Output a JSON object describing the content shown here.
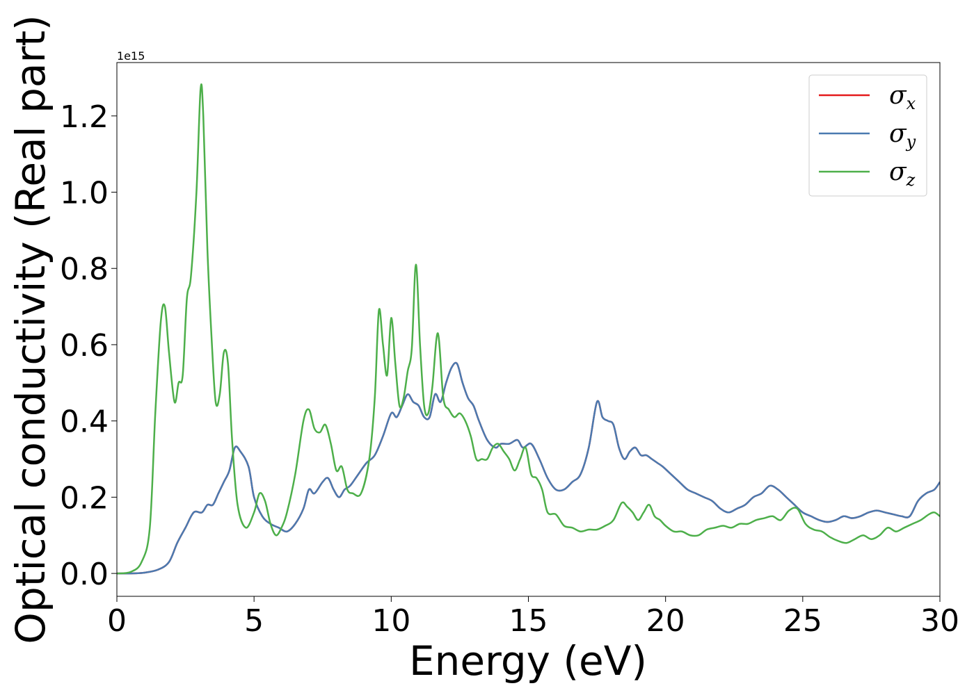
{
  "chart_data": {
    "type": "line",
    "xlabel": "Energy (eV)",
    "ylabel": "Optical conductivity (Real part)",
    "y_offset_label": "1e15",
    "xlim": [
      0,
      30
    ],
    "ylim": [
      -0.06,
      1.34
    ],
    "x_ticks": [
      0,
      5,
      10,
      15,
      20,
      25,
      30
    ],
    "x_tick_labels": [
      "0",
      "5",
      "10",
      "15",
      "20",
      "25",
      "30"
    ],
    "y_ticks": [
      0.0,
      0.2,
      0.4,
      0.6,
      0.8,
      1.0,
      1.2
    ],
    "y_tick_labels": [
      "0.0",
      "0.2",
      "0.4",
      "0.6",
      "0.8",
      "1.0",
      "1.2"
    ],
    "grid": false,
    "legend_position": "top-right",
    "series": [
      {
        "name": "σx",
        "symbol": "σ",
        "subscript": "x",
        "color": "#e41a1c",
        "x": [
          0,
          0.5,
          1,
          1.5,
          1.9,
          2.2,
          2.5,
          2.8,
          3.1,
          3.3,
          3.5,
          3.7,
          3.9,
          4.1,
          4.3,
          4.5,
          4.8,
          5,
          5.3,
          5.6,
          5.9,
          6.2,
          6.5,
          6.8,
          7,
          7.2,
          7.5,
          7.7,
          7.9,
          8.1,
          8.3,
          8.5,
          8.8,
          9.1,
          9.4,
          9.7,
          10,
          10.2,
          10.4,
          10.6,
          10.8,
          11,
          11.2,
          11.4,
          11.6,
          11.8,
          12,
          12.2,
          12.4,
          12.6,
          12.8,
          13,
          13.2,
          13.5,
          13.8,
          14,
          14.3,
          14.6,
          14.8,
          15.1,
          15.4,
          15.7,
          16,
          16.3,
          16.6,
          16.9,
          17.2,
          17.5,
          17.7,
          17.9,
          18.1,
          18.3,
          18.5,
          18.7,
          18.9,
          19.1,
          19.3,
          19.5,
          19.7,
          19.9,
          20.2,
          20.5,
          20.8,
          21.1,
          21.4,
          21.7,
          22,
          22.3,
          22.6,
          22.9,
          23.2,
          23.5,
          23.8,
          24.1,
          24.4,
          24.7,
          25,
          25.3,
          25.6,
          25.9,
          26.2,
          26.5,
          26.8,
          27.1,
          27.4,
          27.7,
          28,
          28.3,
          28.6,
          28.9,
          29.2,
          29.5,
          29.8,
          30
        ],
        "y": [
          0,
          0,
          0.002,
          0.01,
          0.03,
          0.08,
          0.12,
          0.16,
          0.16,
          0.18,
          0.18,
          0.21,
          0.24,
          0.27,
          0.33,
          0.32,
          0.28,
          0.2,
          0.15,
          0.13,
          0.12,
          0.11,
          0.13,
          0.17,
          0.22,
          0.21,
          0.24,
          0.25,
          0.22,
          0.2,
          0.22,
          0.23,
          0.26,
          0.29,
          0.31,
          0.36,
          0.42,
          0.41,
          0.44,
          0.47,
          0.45,
          0.44,
          0.41,
          0.41,
          0.47,
          0.45,
          0.5,
          0.54,
          0.55,
          0.5,
          0.46,
          0.44,
          0.4,
          0.35,
          0.33,
          0.34,
          0.34,
          0.35,
          0.33,
          0.34,
          0.3,
          0.25,
          0.22,
          0.22,
          0.24,
          0.26,
          0.33,
          0.45,
          0.41,
          0.4,
          0.39,
          0.33,
          0.3,
          0.32,
          0.33,
          0.31,
          0.31,
          0.3,
          0.29,
          0.28,
          0.26,
          0.24,
          0.22,
          0.21,
          0.2,
          0.19,
          0.17,
          0.16,
          0.17,
          0.18,
          0.2,
          0.21,
          0.23,
          0.22,
          0.2,
          0.18,
          0.16,
          0.15,
          0.14,
          0.135,
          0.14,
          0.15,
          0.145,
          0.15,
          0.16,
          0.165,
          0.16,
          0.155,
          0.15,
          0.15,
          0.19,
          0.21,
          0.22,
          0.24
        ]
      },
      {
        "name": "σy",
        "symbol": "σ",
        "subscript": "y",
        "color": "#4a7ab0",
        "x": [
          0,
          0.5,
          1,
          1.5,
          1.9,
          2.2,
          2.5,
          2.8,
          3.1,
          3.3,
          3.5,
          3.7,
          3.9,
          4.1,
          4.3,
          4.5,
          4.8,
          5,
          5.3,
          5.6,
          5.9,
          6.2,
          6.5,
          6.8,
          7,
          7.2,
          7.5,
          7.7,
          7.9,
          8.1,
          8.3,
          8.5,
          8.8,
          9.1,
          9.4,
          9.7,
          10,
          10.2,
          10.4,
          10.6,
          10.8,
          11,
          11.2,
          11.4,
          11.6,
          11.8,
          12,
          12.2,
          12.4,
          12.6,
          12.8,
          13,
          13.2,
          13.5,
          13.8,
          14,
          14.3,
          14.6,
          14.8,
          15.1,
          15.4,
          15.7,
          16,
          16.3,
          16.6,
          16.9,
          17.2,
          17.5,
          17.7,
          17.9,
          18.1,
          18.3,
          18.5,
          18.7,
          18.9,
          19.1,
          19.3,
          19.5,
          19.7,
          19.9,
          20.2,
          20.5,
          20.8,
          21.1,
          21.4,
          21.7,
          22,
          22.3,
          22.6,
          22.9,
          23.2,
          23.5,
          23.8,
          24.1,
          24.4,
          24.7,
          25,
          25.3,
          25.6,
          25.9,
          26.2,
          26.5,
          26.8,
          27.1,
          27.4,
          27.7,
          28,
          28.3,
          28.6,
          28.9,
          29.2,
          29.5,
          29.8,
          30
        ],
        "y": [
          0,
          0,
          0.002,
          0.01,
          0.03,
          0.08,
          0.12,
          0.16,
          0.16,
          0.18,
          0.18,
          0.21,
          0.24,
          0.27,
          0.33,
          0.32,
          0.28,
          0.2,
          0.15,
          0.13,
          0.12,
          0.11,
          0.13,
          0.17,
          0.22,
          0.21,
          0.24,
          0.25,
          0.22,
          0.2,
          0.22,
          0.23,
          0.26,
          0.29,
          0.31,
          0.36,
          0.42,
          0.41,
          0.44,
          0.47,
          0.45,
          0.44,
          0.41,
          0.41,
          0.47,
          0.45,
          0.5,
          0.54,
          0.55,
          0.5,
          0.46,
          0.44,
          0.4,
          0.35,
          0.33,
          0.34,
          0.34,
          0.35,
          0.33,
          0.34,
          0.3,
          0.25,
          0.22,
          0.22,
          0.24,
          0.26,
          0.33,
          0.45,
          0.41,
          0.4,
          0.39,
          0.33,
          0.3,
          0.32,
          0.33,
          0.31,
          0.31,
          0.3,
          0.29,
          0.28,
          0.26,
          0.24,
          0.22,
          0.21,
          0.2,
          0.19,
          0.17,
          0.16,
          0.17,
          0.18,
          0.2,
          0.21,
          0.23,
          0.22,
          0.2,
          0.18,
          0.16,
          0.15,
          0.14,
          0.135,
          0.14,
          0.15,
          0.145,
          0.15,
          0.16,
          0.165,
          0.16,
          0.155,
          0.15,
          0.15,
          0.19,
          0.21,
          0.22,
          0.24
        ]
      },
      {
        "name": "σz",
        "symbol": "σ",
        "subscript": "z",
        "color": "#4daf4a",
        "x": [
          0,
          0.5,
          0.9,
          1.2,
          1.4,
          1.6,
          1.75,
          1.9,
          2.1,
          2.25,
          2.4,
          2.55,
          2.7,
          2.9,
          3.05,
          3.15,
          3.3,
          3.45,
          3.6,
          3.75,
          3.9,
          4.05,
          4.2,
          4.4,
          4.7,
          5,
          5.2,
          5.4,
          5.6,
          5.8,
          6,
          6.2,
          6.5,
          6.8,
          7,
          7.2,
          7.4,
          7.6,
          7.8,
          8,
          8.2,
          8.4,
          8.6,
          8.9,
          9.2,
          9.4,
          9.55,
          9.7,
          9.85,
          10,
          10.15,
          10.3,
          10.45,
          10.6,
          10.75,
          10.9,
          11.05,
          11.2,
          11.35,
          11.5,
          11.7,
          11.9,
          12.1,
          12.3,
          12.5,
          12.7,
          12.9,
          13.1,
          13.3,
          13.5,
          13.7,
          13.9,
          14.1,
          14.3,
          14.5,
          14.7,
          14.9,
          15.1,
          15.3,
          15.5,
          15.7,
          16,
          16.3,
          16.6,
          16.9,
          17.2,
          17.5,
          17.8,
          18.1,
          18.4,
          18.6,
          18.8,
          19,
          19.2,
          19.4,
          19.6,
          19.8,
          20,
          20.3,
          20.6,
          20.9,
          21.2,
          21.5,
          21.8,
          22.1,
          22.4,
          22.7,
          23,
          23.3,
          23.6,
          23.9,
          24.2,
          24.5,
          24.8,
          25.1,
          25.4,
          25.7,
          26,
          26.3,
          26.6,
          26.9,
          27.2,
          27.5,
          27.8,
          28.1,
          28.4,
          28.7,
          29,
          29.3,
          29.6,
          29.8,
          30
        ],
        "y": [
          0,
          0.004,
          0.03,
          0.12,
          0.42,
          0.66,
          0.7,
          0.58,
          0.45,
          0.5,
          0.52,
          0.72,
          0.78,
          1.0,
          1.27,
          1.2,
          0.85,
          0.62,
          0.45,
          0.47,
          0.58,
          0.55,
          0.35,
          0.18,
          0.12,
          0.16,
          0.21,
          0.19,
          0.13,
          0.1,
          0.12,
          0.16,
          0.26,
          0.4,
          0.43,
          0.38,
          0.37,
          0.39,
          0.34,
          0.27,
          0.28,
          0.22,
          0.21,
          0.21,
          0.3,
          0.46,
          0.69,
          0.6,
          0.52,
          0.67,
          0.55,
          0.44,
          0.46,
          0.53,
          0.59,
          0.81,
          0.6,
          0.44,
          0.42,
          0.49,
          0.63,
          0.46,
          0.43,
          0.41,
          0.42,
          0.4,
          0.36,
          0.3,
          0.3,
          0.3,
          0.33,
          0.34,
          0.32,
          0.3,
          0.27,
          0.3,
          0.33,
          0.26,
          0.25,
          0.22,
          0.16,
          0.155,
          0.125,
          0.12,
          0.11,
          0.115,
          0.115,
          0.125,
          0.14,
          0.185,
          0.175,
          0.16,
          0.14,
          0.16,
          0.18,
          0.15,
          0.14,
          0.125,
          0.11,
          0.11,
          0.1,
          0.1,
          0.115,
          0.12,
          0.125,
          0.12,
          0.13,
          0.13,
          0.14,
          0.145,
          0.15,
          0.14,
          0.165,
          0.17,
          0.13,
          0.115,
          0.11,
          0.095,
          0.085,
          0.08,
          0.09,
          0.1,
          0.09,
          0.1,
          0.12,
          0.11,
          0.12,
          0.13,
          0.14,
          0.155,
          0.16,
          0.15
        ]
      }
    ]
  }
}
